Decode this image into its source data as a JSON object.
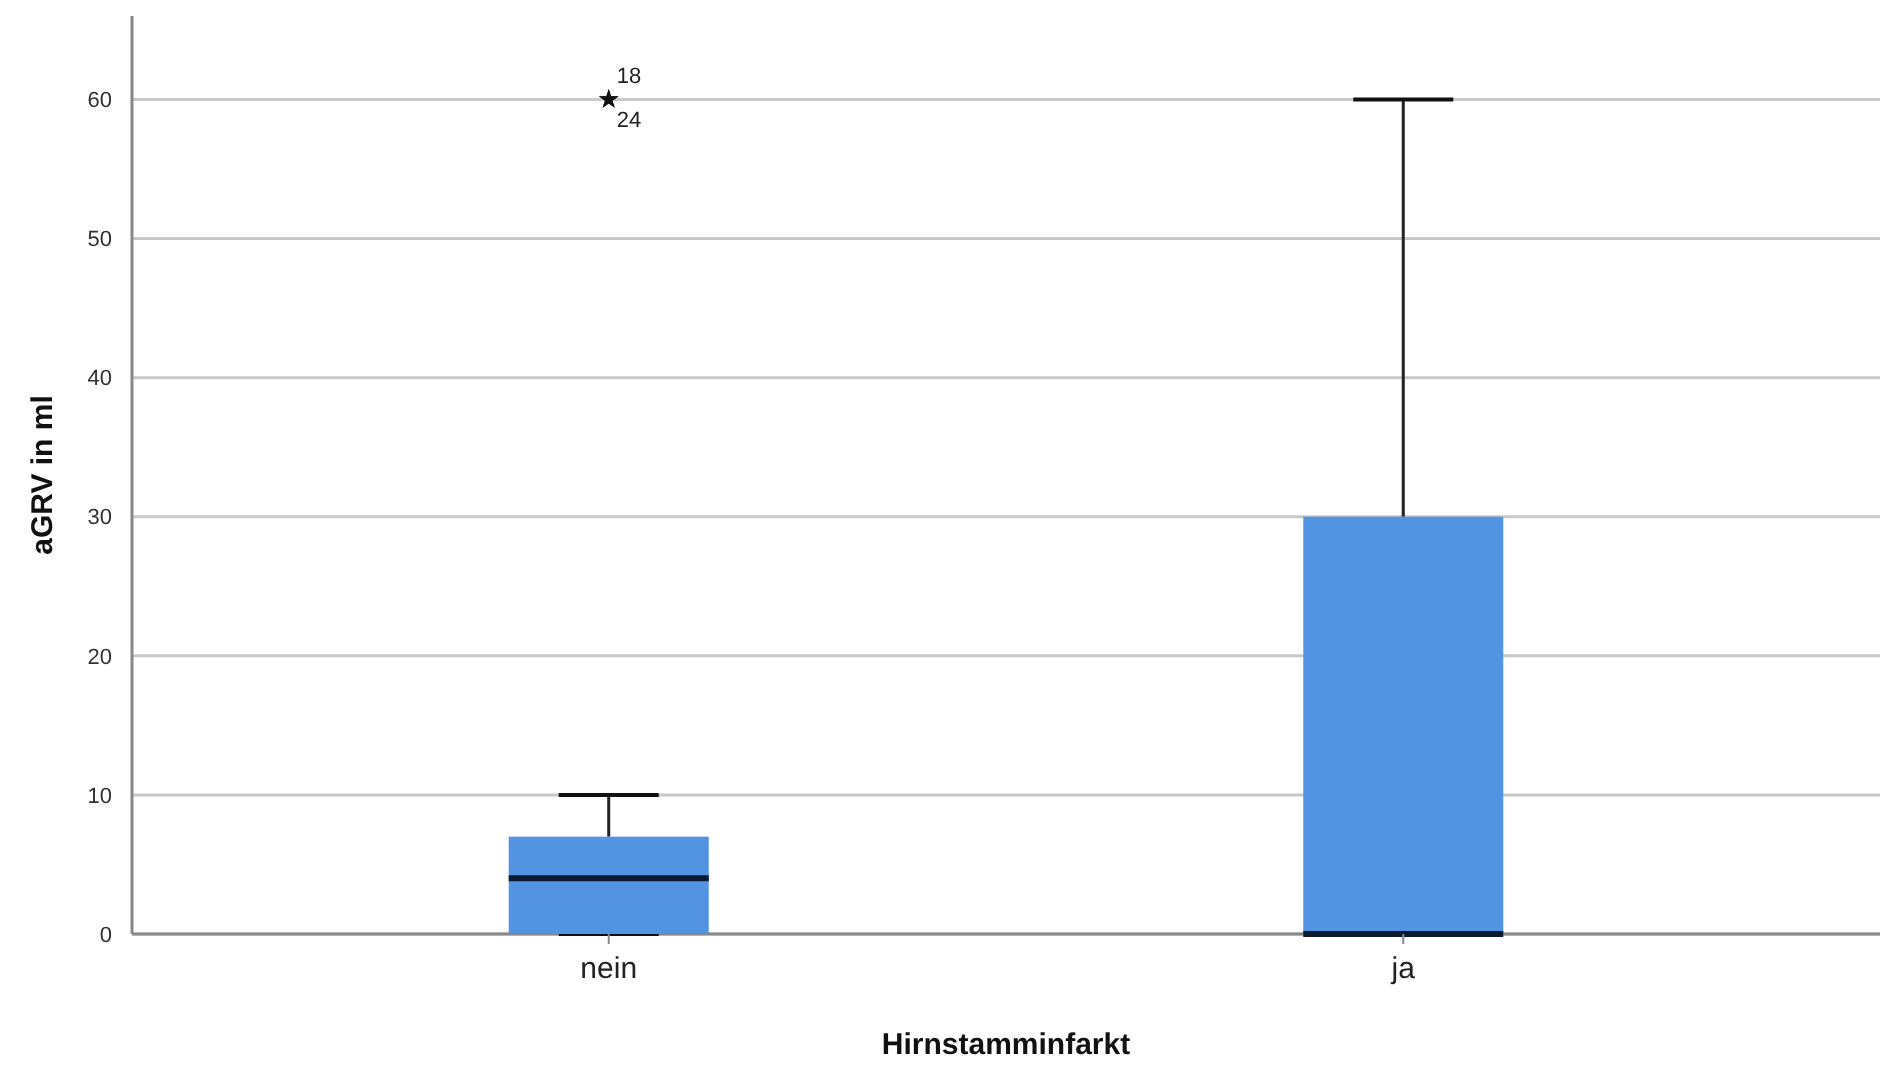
{
  "chart_data": {
    "type": "box",
    "xlabel": "Hirnstamminfarkt",
    "ylabel": "aGRV in ml",
    "categories": [
      "nein",
      "ja"
    ],
    "boxes": [
      {
        "low": 0,
        "q1": 0,
        "median": 4,
        "q3": 7,
        "high": 10,
        "outliers": [
          60,
          60
        ]
      },
      {
        "low": 0,
        "q1": 0,
        "median": 0,
        "q3": 30,
        "high": 60
      }
    ],
    "color": "#5294e2",
    "ylim": [
      0,
      66
    ],
    "yticks": [
      0,
      10,
      20,
      30,
      40,
      50,
      60
    ],
    "grid": "y",
    "marker": "star",
    "annotations": [
      "18",
      "24"
    ]
  }
}
